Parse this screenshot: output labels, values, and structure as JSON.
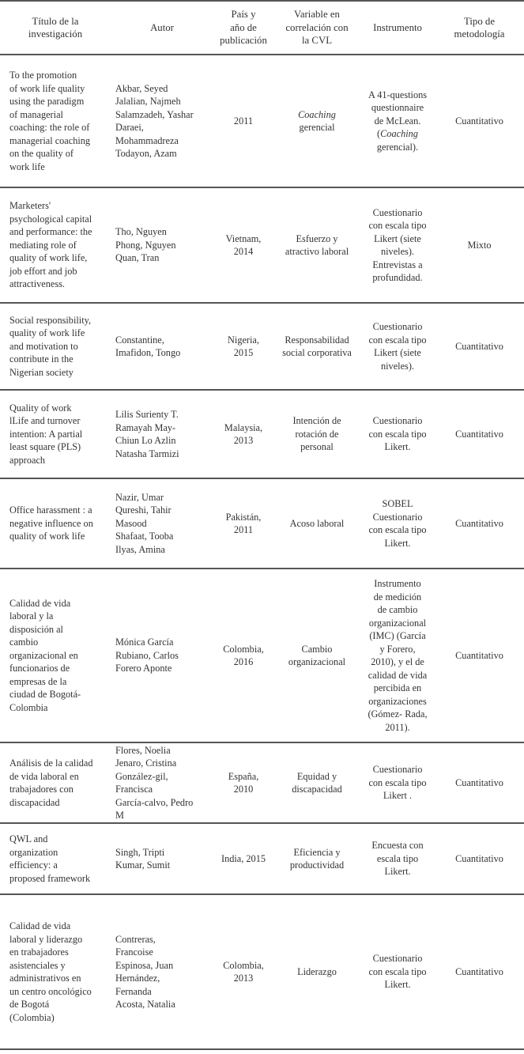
{
  "headers": [
    "Título de la\ninvestigación",
    "Autor",
    "País y\naño de\npublicación",
    "Variable en\ncorrelación con\nla CVL",
    "Instrumento",
    "Tipo de\nmetodología"
  ],
  "rows": [
    {
      "title": "To the promotion\nof work life quality\nusing the paradigm\nof managerial\ncoaching: the role of\nmanagerial coaching\non the quality of\nwork life",
      "author": "Akbar, Seyed\nJalalian, Najmeh\nSalamzadeh, Yashar\nDaraei,\nMohammadreza\nTodayon, Azam",
      "country": "2011",
      "variable_italic": "Coaching",
      "variable": "gerencial",
      "instrument_pre": "A 41-questions\nquestionnaire\nde McLean.\n(",
      "instrument_italic": "Coaching",
      "instrument_post": "\ngerencial).",
      "method": "Cuantitativo"
    },
    {
      "title": "Marketers'\npsychological capital\nand performance: the\nmediating role of\nquality of work life,\njob effort and job\nattractiveness.",
      "author": "Tho, Nguyen\nPhong, Nguyen\nQuan, Tran",
      "country": "Vietnam,\n2014",
      "variable": "Esfuerzo y\natractivo laboral",
      "instrument": "Cuestionario\ncon escala tipo\nLikert (siete\nniveles).\nEntrevistas a\nprofundidad.",
      "method": "Mixto"
    },
    {
      "title": "Social responsibility,\nquality of work life\nand motivation to\ncontribute in the\nNigerian society",
      "author": "Constantine,\nImafidon, Tongo",
      "country": "Nigeria,\n2015",
      "variable": "Responsabilidad\nsocial corporativa",
      "instrument": "Cuestionario\ncon escala tipo\nLikert (siete\nniveles).",
      "method": "Cuantitativo"
    },
    {
      "title": "Quality of work\nlLife and turnover\nintention: A partial\nleast square (PLS)\napproach",
      "author": "Lilis Surienty T.\nRamayah May-\nChiun Lo Azlin\nNatasha Tarmizi",
      "country": "Malaysia,\n2013",
      "variable": "Intención de\nrotación de\npersonal",
      "instrument": "Cuestionario\ncon escala tipo\nLikert.",
      "method": "Cuantitativo"
    },
    {
      "title": "Office harassment : a\nnegative influence on\nquality of work life",
      "author": "Nazir, Umar\nQureshi, Tahir\nMasood\nShafaat, Tooba\nIlyas, Amina",
      "country": "Pakistán,\n2011",
      "variable": "Acoso laboral",
      "instrument": "SOBEL\nCuestionario\ncon escala tipo\nLikert.",
      "method": "Cuantitativo"
    },
    {
      "title": "Calidad de vida\nlaboral y la\ndisposición al\ncambio\norganizacional en\nfuncionarios de\nempresas de la\nciudad de Bogotá-\nColombia",
      "author": "Mónica García\nRubiano, Carlos\nForero Aponte",
      "country": "Colombia,\n2016",
      "variable": "Cambio\norganizacional",
      "instrument": "Instrumento\nde medición\nde cambio\norganizacional\n(IMC) (García\ny Forero,\n2010), y el de\ncalidad de vida\npercibida en\norganizaciones\n(Gómez- Rada,\n2011).",
      "method": "Cuantitativo"
    },
    {
      "title": "Análisis de la calidad\nde vida laboral en\ntrabajadores con\ndiscapacidad",
      "author": "Flores, Noelia\nJenaro, Cristina\nGonzález-gil,\nFrancisca\nGarcía-calvo, Pedro\nM",
      "country": "España,\n2010",
      "variable": "Equidad y\ndiscapacidad",
      "instrument": "Cuestionario\ncon escala tipo\nLikert .",
      "method": "Cuantitativo"
    },
    {
      "title": "QWL and\norganization\nefficiency: a\nproposed framework",
      "author": "Singh, Tripti\nKumar, Sumit",
      "country": "India, 2015",
      "variable": "Eficiencia y\nproductividad",
      "instrument": "Encuesta con\nescala tipo\nLikert.",
      "method": "Cuantitativo"
    },
    {
      "title": "Calidad de vida\nlaboral y liderazgo\nen trabajadores\nasistenciales y\nadministrativos en\nun centro oncológico\nde Bogotá\n(Colombia)",
      "author": "Contreras,\nFrancoise\nEspinosa, Juan\nHernández,\nFernanda\nAcosta, Natalia",
      "country": "Colombia,\n2013",
      "variable": "Liderazgo",
      "instrument": "Cuestionario\ncon escala tipo\nLikert.",
      "method": "Cuantitativo"
    }
  ]
}
